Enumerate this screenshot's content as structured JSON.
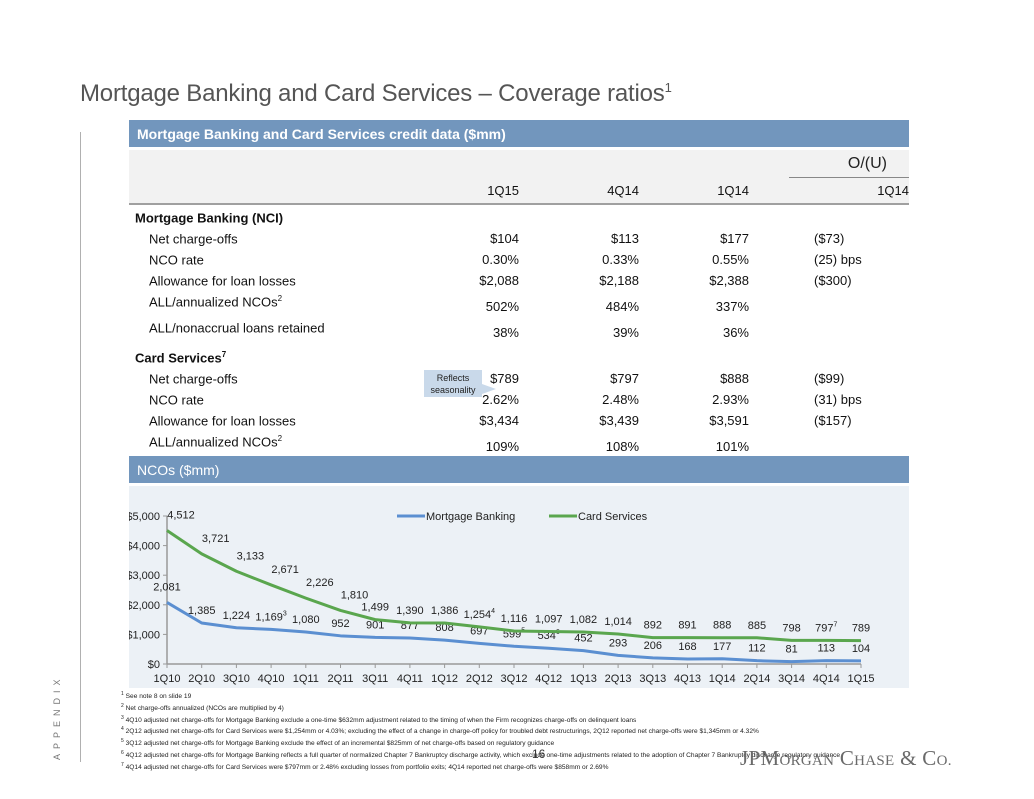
{
  "page": {
    "title": "Mortgage Banking and Card Services – Coverage ratios",
    "title_sup": "1",
    "side_label": "APPENDIX",
    "page_number": "16",
    "logo": {
      "part1": "JPM",
      "part2": "ORGAN",
      "part3": " C",
      "part4": "HASE",
      "part5": " & C",
      "part6": "O."
    }
  },
  "table": {
    "header": "Mortgage Banking and Card Services credit data ($mm)",
    "ou_label": "O/(U)",
    "columns": [
      "1Q15",
      "4Q14",
      "1Q14",
      "1Q14"
    ],
    "groups": [
      {
        "name": "Mortgage Banking (NCI)",
        "name_sup": "",
        "rows": [
          {
            "label": "Net charge-offs",
            "sup": "",
            "values": [
              "$104",
              "$113",
              "$177",
              "($73)"
            ]
          },
          {
            "label": "NCO rate",
            "sup": "",
            "values": [
              "0.30%",
              "0.33%",
              "0.55%",
              "(25) bps"
            ]
          },
          {
            "label": "Allowance for loan losses",
            "sup": "",
            "values": [
              "$2,088",
              "$2,188",
              "$2,388",
              "($300)"
            ]
          },
          {
            "label": "ALL/annualized NCOs",
            "sup": "2",
            "values": [
              "502%",
              "484%",
              "337%",
              ""
            ]
          },
          {
            "label": "ALL/nonaccrual loans retained",
            "sup": "",
            "values": [
              "38%",
              "39%",
              "36%",
              ""
            ]
          }
        ]
      },
      {
        "name": "Card Services",
        "name_sup": "7",
        "rows": [
          {
            "label": "Net charge-offs",
            "sup": "",
            "values": [
              "$789",
              "$797",
              "$888",
              "($99)"
            ]
          },
          {
            "label": "NCO rate",
            "sup": "",
            "values": [
              "2.62%",
              "2.48%",
              "2.93%",
              "(31) bps"
            ]
          },
          {
            "label": "Allowance for loan losses",
            "sup": "",
            "values": [
              "$3,434",
              "$3,439",
              "$3,591",
              "($157)"
            ]
          },
          {
            "label": "ALL/annualized NCOs",
            "sup": "2",
            "values": [
              "109%",
              "108%",
              "101%",
              ""
            ]
          }
        ]
      }
    ],
    "callout": {
      "line1": "Reflects",
      "line2": "seasonality"
    }
  },
  "chart_header": "NCOs ($mm)",
  "chart_data": {
    "type": "line",
    "title": "NCOs ($mm)",
    "xlabel": "",
    "ylabel": "",
    "ylim": [
      0,
      5000
    ],
    "yticks": [
      0,
      1000,
      2000,
      3000,
      4000,
      5000
    ],
    "ytick_labels": [
      "$0",
      "$1,000",
      "$2,000",
      "$3,000",
      "$4,000",
      "$5,000"
    ],
    "grid": false,
    "legend_position": "top-center",
    "categories": [
      "1Q10",
      "2Q10",
      "3Q10",
      "4Q10",
      "1Q11",
      "2Q11",
      "3Q11",
      "4Q11",
      "1Q12",
      "2Q12",
      "3Q12",
      "4Q12",
      "1Q13",
      "2Q13",
      "3Q13",
      "4Q13",
      "1Q14",
      "2Q14",
      "3Q14",
      "4Q14",
      "1Q15"
    ],
    "series": [
      {
        "name": "Mortgage Banking",
        "color": "#5b8fd1",
        "values": [
          2081,
          1385,
          1224,
          1169,
          1080,
          952,
          901,
          877,
          808,
          697,
          599,
          534,
          452,
          293,
          206,
          168,
          177,
          112,
          81,
          113,
          104
        ],
        "labels": [
          "2,081",
          "1,385",
          "1,224",
          "1,169",
          "1,080",
          "952",
          "901",
          "877",
          "808",
          "697",
          "599",
          "534",
          "452",
          "293",
          "206",
          "168",
          "177",
          "112",
          "81",
          "113",
          "104"
        ],
        "label_sups": [
          "",
          "",
          "",
          "3",
          "",
          "",
          "",
          "",
          "",
          "",
          "5",
          "6",
          "",
          "",
          "",
          "",
          "",
          "",
          "",
          "",
          ""
        ]
      },
      {
        "name": "Card Services",
        "color": "#5aa64e",
        "values": [
          4512,
          3721,
          3133,
          2671,
          2226,
          1810,
          1499,
          1390,
          1386,
          1254,
          1116,
          1097,
          1082,
          1014,
          892,
          891,
          888,
          885,
          798,
          797,
          789
        ],
        "labels": [
          "4,512",
          "3,721",
          "3,133",
          "2,671",
          "2,226",
          "1,810",
          "1,499",
          "1,390",
          "1,386",
          "1,254",
          "1,116",
          "1,097",
          "1,082",
          "1,014",
          "892",
          "891",
          "888",
          "885",
          "798",
          "797",
          "789"
        ],
        "label_sups": [
          "",
          "",
          "",
          "",
          "",
          "",
          "",
          "",
          "",
          "4",
          "",
          "",
          "",
          "",
          "",
          "",
          "",
          "",
          "",
          "7",
          ""
        ]
      }
    ]
  },
  "footnotes": [
    {
      "num": "1",
      "text": "See note 8 on slide 19"
    },
    {
      "num": "2",
      "text": "Net charge-offs annualized (NCOs are multiplied by 4)"
    },
    {
      "num": "3",
      "text": "4Q10 adjusted net charge-offs for Mortgage Banking exclude a one-time $632mm adjustment related to the timing of when the Firm recognizes charge-offs on delinquent loans"
    },
    {
      "num": "4",
      "text": "2Q12 adjusted net charge-offs for Card Services were $1,254mm or 4.03%; excluding the effect of a change in charge-off policy for troubled debt restructurings, 2Q12 reported net charge-offs were $1,345mm or 4.32%"
    },
    {
      "num": "5",
      "text": "3Q12 adjusted net charge-offs for Mortgage Banking exclude the effect of an incremental $825mm of net charge-offs based on regulatory guidance"
    },
    {
      "num": "6",
      "text": "4Q12 adjusted net charge-offs for Mortgage Banking reflects a full quarter of normalized Chapter 7 Bankruptcy discharge activity, which exclude one-time adjustments related to the adoption of Chapter 7 Bankruptcy discharge regulatory guidance"
    },
    {
      "num": "7",
      "text": "4Q14 adjusted net charge-offs for Card Services were $797mm or 2.48% excluding losses from portfolio exits; 4Q14 reported net charge-offs were $858mm or 2.69%"
    }
  ]
}
